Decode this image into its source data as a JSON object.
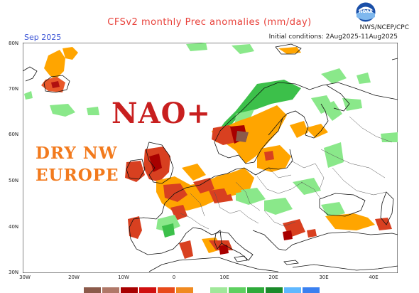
{
  "header": {
    "title": "CFSv2 monthly Prec anomalies (mm/day)",
    "month": "Sep 2025",
    "initial_conditions": "Initial conditions: 2Aug2025-11Aug2025",
    "agency": "NWS/NCEP/CPC",
    "logo_icon": "noaa-logo-icon"
  },
  "annotations": {
    "headline": "NAO+",
    "subtext_line1": "DRY NW",
    "subtext_line2": "EUROPE"
  },
  "axes": {
    "lat_labels": [
      "80N",
      "70N",
      "60N",
      "50N",
      "40N",
      "30N"
    ],
    "lon_labels": [
      "30W",
      "20W",
      "10W",
      "0",
      "10E",
      "20E",
      "30E",
      "40E"
    ]
  },
  "legend": {
    "colors": [
      "#8b5a4a",
      "#b07868",
      "#a80000",
      "#d01010",
      "#e84a1a",
      "#f08a20",
      "#ffffff",
      "#a0e89a",
      "#5ed060",
      "#2eaa3a",
      "#1a8a2a",
      "#60b8ff",
      "#3a80f0"
    ]
  },
  "colors": {
    "dry_dark": "#a80000",
    "dry_red": "#d84020",
    "dry_orange": "#ffa500",
    "wet_light": "#8ae88a",
    "wet_mid": "#3cc04a",
    "coast": "#111111",
    "border": "#444444"
  }
}
